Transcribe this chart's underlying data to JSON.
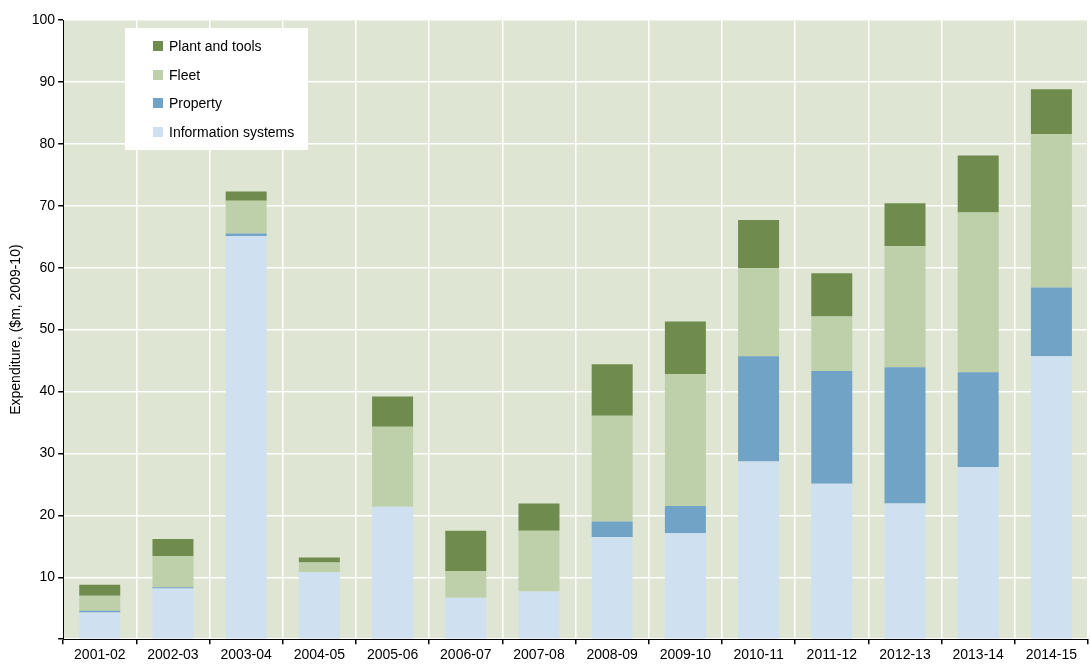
{
  "chart_data": {
    "type": "bar",
    "stacked": true,
    "ylabel": "Expenditure, ($m, 2009-10)",
    "categories": [
      "2001-02",
      "2002-03",
      "2003-04",
      "2004-05",
      "2005-06",
      "2006-07",
      "2007-08",
      "2008-09",
      "2009-10",
      "2010-11",
      "2011-12",
      "2012-13",
      "2013-14",
      "2014-15"
    ],
    "series": [
      {
        "name": "Information systems",
        "color": "#cfe1f0",
        "values": [
          4.3,
          8.2,
          65.1,
          10.8,
          21.4,
          6.7,
          7.7,
          16.5,
          17.1,
          28.7,
          25.1,
          21.9,
          27.8,
          45.7
        ]
      },
      {
        "name": "Property",
        "color": "#71a3c6",
        "values": [
          0.3,
          0.2,
          0.4,
          0,
          0,
          0,
          0,
          2.5,
          4.4,
          17.0,
          18.2,
          22.0,
          15.3,
          11.1
        ]
      },
      {
        "name": "Fleet",
        "color": "#bed0a9",
        "values": [
          2.4,
          5.0,
          5.3,
          1.6,
          12.9,
          4.3,
          9.8,
          17.1,
          21.3,
          14.2,
          8.8,
          19.6,
          25.8,
          24.8
        ]
      },
      {
        "name": "Plant and tools",
        "color": "#6f8c4e",
        "values": [
          1.8,
          2.8,
          1.5,
          0.8,
          4.9,
          6.5,
          4.4,
          8.3,
          8.5,
          7.8,
          7.0,
          6.9,
          9.2,
          7.2
        ]
      }
    ],
    "ylim": [
      0,
      100
    ],
    "yticks": [
      {
        "value": 0,
        "label": null
      },
      10,
      20,
      30,
      40,
      50,
      60,
      70,
      80,
      90,
      100
    ],
    "grid": true,
    "legend": "top left"
  }
}
